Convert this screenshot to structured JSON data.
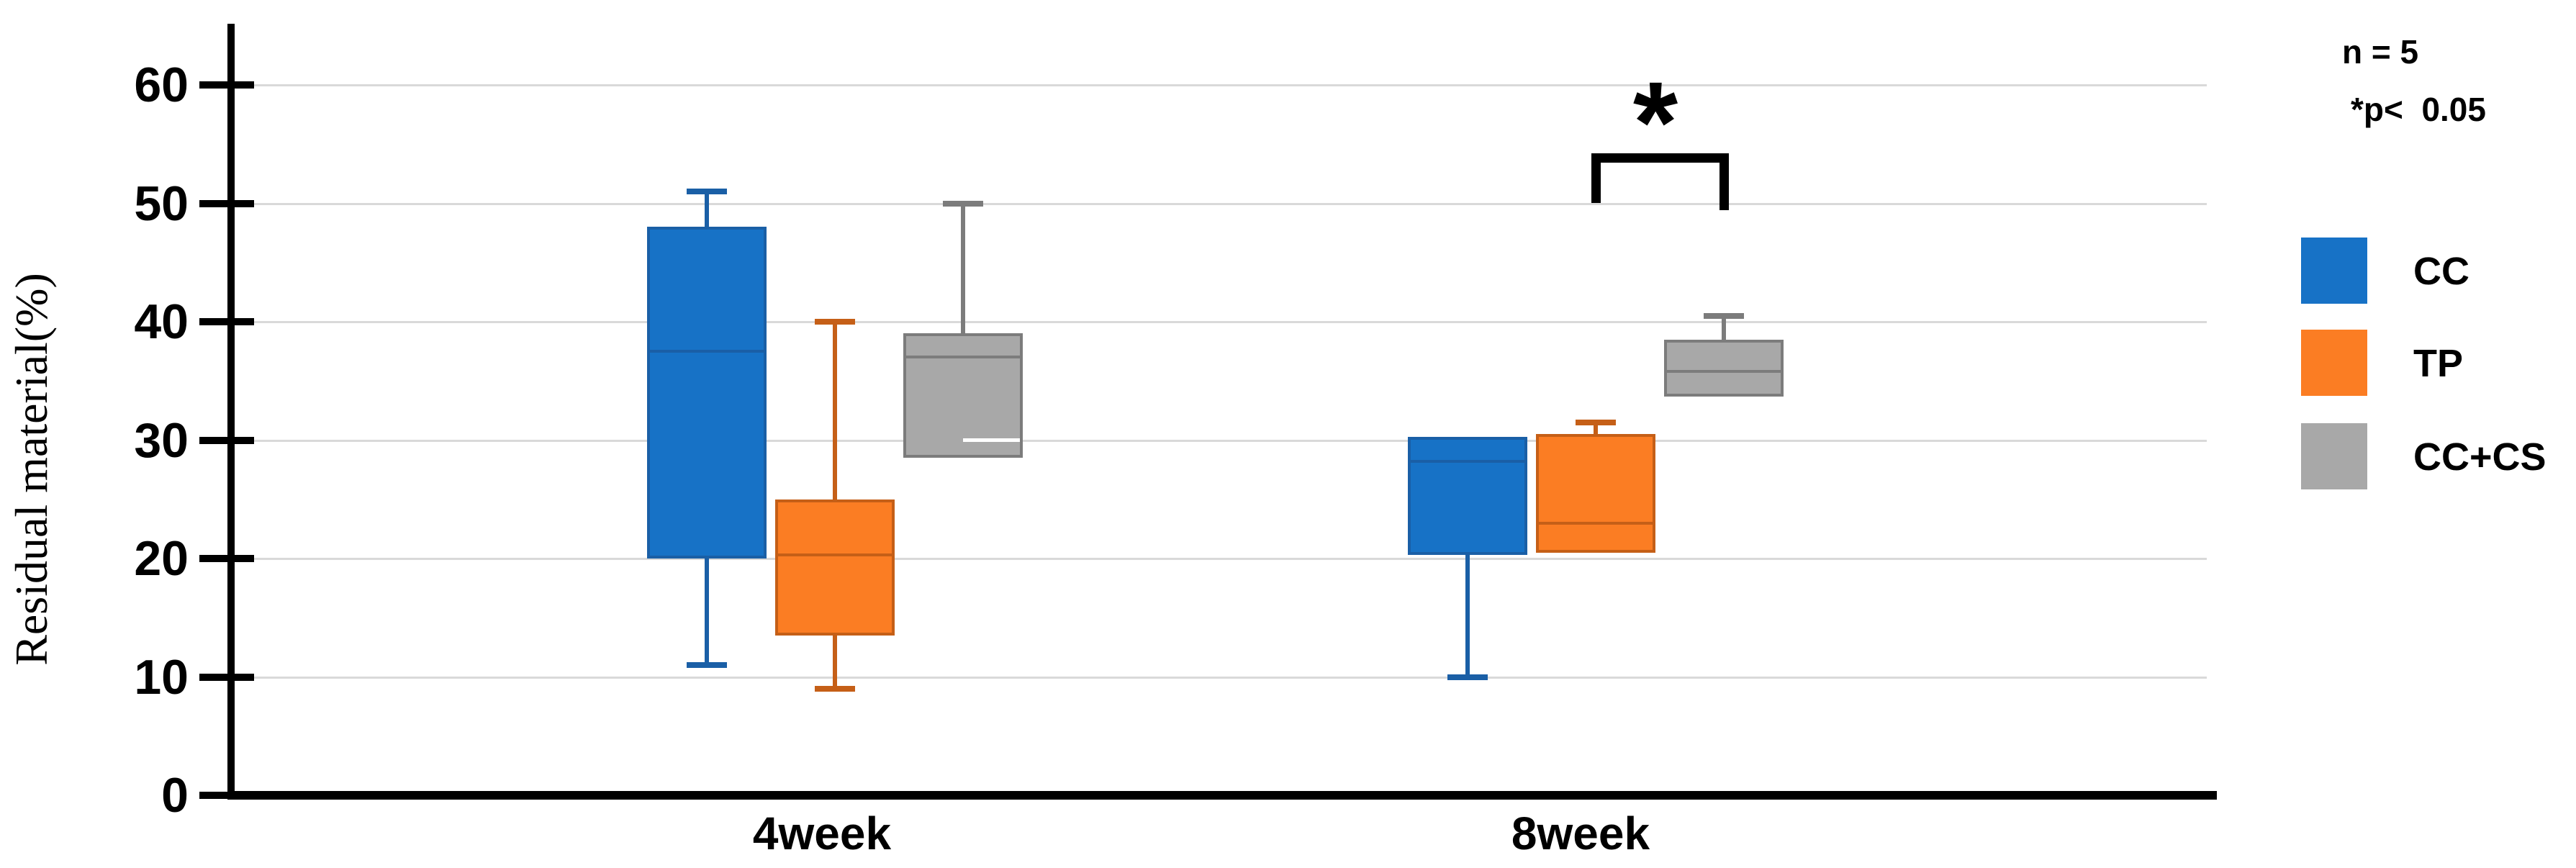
{
  "chart_data": {
    "type": "boxplot",
    "title": "",
    "xlabel": "",
    "ylabel": "Residual material(%)",
    "ylim": [
      0,
      65
    ],
    "yticks": [
      0,
      10,
      20,
      30,
      40,
      50,
      60
    ],
    "grid": true,
    "legend_position": "right",
    "categories": [
      "4week",
      "8week"
    ],
    "series": [
      {
        "name": "CC",
        "fill": "#1772C6",
        "stroke": "#1A5FA6",
        "boxes": [
          {
            "category": "4week",
            "min": 11,
            "q1": 20,
            "median": 37.5,
            "q3": 48,
            "max": 51
          },
          {
            "category": "8week",
            "min": 10,
            "q1": 20.3,
            "median": 28.2,
            "q3": 30.3,
            "max": 30.3
          }
        ]
      },
      {
        "name": "TP",
        "fill": "#FB7D23",
        "stroke": "#C55F17",
        "boxes": [
          {
            "category": "4week",
            "min": 9,
            "q1": 13.5,
            "median": 20.3,
            "q3": 25,
            "max": 40
          },
          {
            "category": "8week",
            "min": 20.5,
            "q1": 20.5,
            "median": 23,
            "q3": 30.5,
            "max": 31.5
          }
        ]
      },
      {
        "name": "CC+CS",
        "fill": "#A8A8A8",
        "stroke": "#7C7C7C",
        "boxes": [
          {
            "category": "4week",
            "min": 28.5,
            "q1": 28.5,
            "median": 37,
            "q3": 39,
            "max": 50
          },
          {
            "category": "8week",
            "min": 33.7,
            "q1": 33.7,
            "median": 35.8,
            "q3": 38.5,
            "max": 40.5
          }
        ]
      }
    ],
    "annotations": {
      "white_dash": {
        "category": "4week",
        "series": "CC+CS",
        "value": 30,
        "color": "#FFFFFF"
      },
      "significance": {
        "category": "8week",
        "from_series": "TP",
        "to_series": "CC+CS",
        "label": "*",
        "bar_value": 54.2,
        "leg_values": [
          50,
          49.4
        ],
        "color": "#000000"
      }
    }
  },
  "legend": {
    "note_n": "n = 5",
    "note_p": "*p<  0.05",
    "items": [
      {
        "label": "CC",
        "color": "#1772C6"
      },
      {
        "label": "TP",
        "color": "#FB7D23"
      },
      {
        "label": "CC+CS",
        "color": "#A8A8A8"
      }
    ]
  },
  "colors": {
    "gridline": "#D9D9D9",
    "axis": "#000000"
  }
}
